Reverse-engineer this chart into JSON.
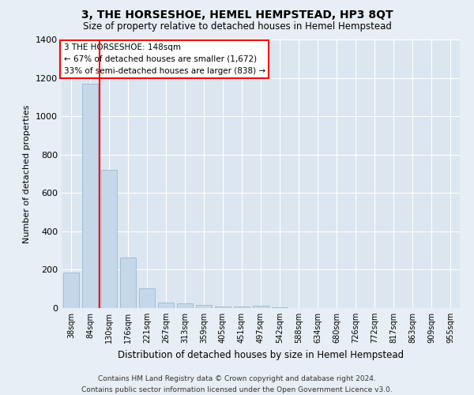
{
  "title": "3, THE HORSESHOE, HEMEL HEMPSTEAD, HP3 8QT",
  "subtitle": "Size of property relative to detached houses in Hemel Hempstead",
  "xlabel": "Distribution of detached houses by size in Hemel Hempstead",
  "ylabel": "Number of detached properties",
  "footer_line1": "Contains HM Land Registry data © Crown copyright and database right 2024.",
  "footer_line2": "Contains public sector information licensed under the Open Government Licence v3.0.",
  "categories": [
    "38sqm",
    "84sqm",
    "130sqm",
    "176sqm",
    "221sqm",
    "267sqm",
    "313sqm",
    "359sqm",
    "405sqm",
    "451sqm",
    "497sqm",
    "542sqm",
    "588sqm",
    "634sqm",
    "680sqm",
    "726sqm",
    "772sqm",
    "817sqm",
    "863sqm",
    "909sqm",
    "955sqm"
  ],
  "values": [
    185,
    1170,
    720,
    265,
    105,
    28,
    25,
    15,
    8,
    8,
    14,
    3,
    2,
    2,
    1,
    1,
    1,
    1,
    0,
    0,
    0
  ],
  "bar_color": "#c5d8ea",
  "bar_edge_color": "#9ab8d0",
  "vline_x": 1.5,
  "vline_color": "red",
  "annotation_text": "3 THE HORSESHOE: 148sqm\n← 67% of detached houses are smaller (1,672)\n33% of semi-detached houses are larger (838) →",
  "annotation_box_facecolor": "white",
  "annotation_box_edgecolor": "red",
  "ylim": [
    0,
    1400
  ],
  "yticks": [
    0,
    200,
    400,
    600,
    800,
    1000,
    1200,
    1400
  ],
  "bg_color": "#e8eef5",
  "plot_bg_color": "#dce6f0",
  "grid_color": "#ffffff"
}
